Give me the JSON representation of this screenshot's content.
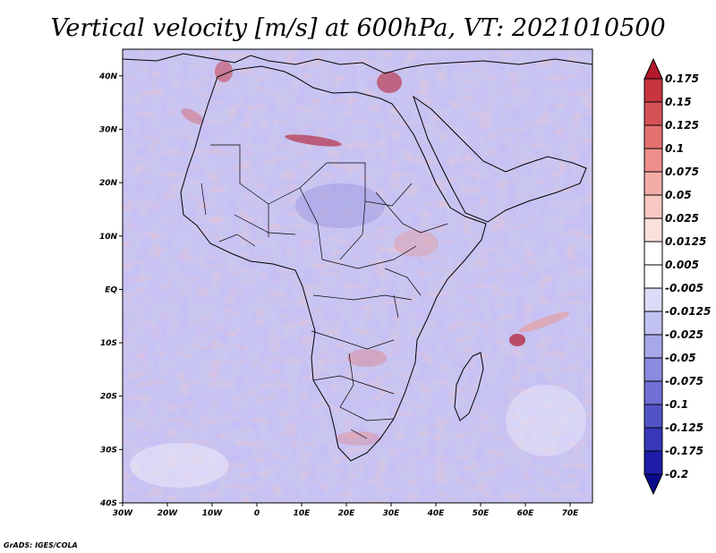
{
  "title": "Vertical velocity [m/s] at 600hPa, VT: 2021010500",
  "credit": "GrADS: IGES/COLA",
  "map": {
    "projection": "lat-lon",
    "lon_range": [
      -30,
      75
    ],
    "lat_range": [
      -40,
      45
    ],
    "field": "vertical velocity",
    "level": "600hPa",
    "units": "m/s",
    "valid_time": "2021010500"
  },
  "x_ticks": [
    "30W",
    "20W",
    "10W",
    "0",
    "10E",
    "20E",
    "30E",
    "40E",
    "50E",
    "60E",
    "70E"
  ],
  "y_ticks": [
    "40N",
    "30N",
    "20N",
    "10N",
    "EQ",
    "10S",
    "20S",
    "30S",
    "40S"
  ],
  "colorbar": {
    "labels": [
      "0.175",
      "0.15",
      "0.125",
      "0.1",
      "0.075",
      "0.05",
      "0.025",
      "0.0125",
      "0.005",
      "-0.005",
      "-0.0125",
      "-0.025",
      "-0.05",
      "-0.075",
      "-0.1",
      "-0.125",
      "-0.175",
      "-0.2"
    ],
    "colors": [
      "#b2182b",
      "#c8343f",
      "#d75257",
      "#e3716f",
      "#ec8f8a",
      "#f3ada6",
      "#f8c9c2",
      "#fbe1dc",
      "#ffffff",
      "#ffffff",
      "#dcdcf8",
      "#c2c2f2",
      "#a7a7ea",
      "#8b8be0",
      "#6f6fd5",
      "#5353c8",
      "#3737b9",
      "#1d1da8",
      "#0a0a8c"
    ]
  }
}
